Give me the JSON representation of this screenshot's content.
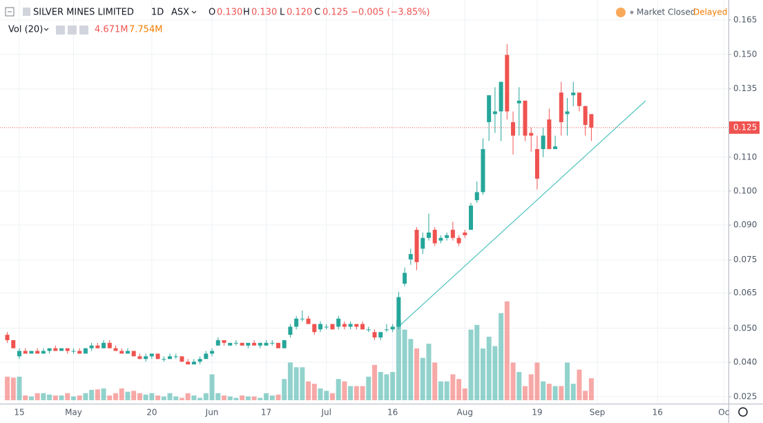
{
  "header": {
    "symbol": "SILVER MINES LIMITED",
    "interval": "1D",
    "exchange": "ASX",
    "open_label": "O",
    "open": "0.130",
    "high_label": "H",
    "high": "0.130",
    "low_label": "L",
    "low": "0.120",
    "close_label": "C",
    "close": "0.125",
    "change": "−0.005 (−3.85%)",
    "market_status": "Market Closed",
    "delay": "Delayed",
    "volume_label": "Vol (20)",
    "volume": "4.671M",
    "volume_ma": "7.754M"
  },
  "chart_data": {
    "type": "candlestick",
    "grid": true,
    "up_color": "#26a69a",
    "down_color": "#ef5350",
    "categories": [
      null,
      null,
      "15",
      null,
      null,
      null,
      null,
      null,
      null,
      null,
      null,
      "May",
      null,
      null,
      null,
      null,
      null,
      null,
      null,
      null,
      null,
      null,
      null,
      null,
      "20",
      null,
      null,
      null,
      null,
      null,
      null,
      null,
      null,
      null,
      "Jun",
      null,
      null,
      null,
      null,
      null,
      null,
      null,
      null,
      "17",
      null,
      null,
      null,
      null,
      null,
      null,
      null,
      null,
      null,
      "Jul",
      null,
      null,
      null,
      null,
      null,
      null,
      null,
      null,
      null,
      null,
      "16",
      null,
      null,
      null,
      null,
      null,
      null,
      null,
      null,
      null,
      null,
      null,
      "Aug",
      null,
      null,
      null,
      null,
      null,
      null,
      null,
      null,
      null,
      null,
      null,
      "19",
      null,
      null,
      null,
      null,
      null,
      null,
      null,
      null,
      null,
      "Sep",
      null,
      null,
      null,
      null,
      null,
      null,
      null,
      null,
      null,
      "16",
      null,
      null,
      null,
      null,
      null,
      null,
      null,
      null,
      null,
      null,
      "Oc"
    ],
    "open": [
      0.048,
      0.046,
      0.04,
      0.042,
      0.041,
      0.042,
      0.041,
      0.042,
      0.043,
      0.042,
      0.043,
      0.042,
      0.042,
      0.041,
      0.043,
      0.044,
      0.043,
      0.045,
      0.043,
      0.042,
      0.041,
      0.042,
      0.04,
      0.039,
      0.04,
      0.041,
      0.039,
      0.039,
      0.04,
      0.04,
      0.038,
      0.037,
      0.038,
      0.039,
      0.041,
      0.044,
      0.046,
      0.044,
      0.045,
      0.045,
      0.044,
      0.045,
      0.044,
      0.044,
      0.045,
      0.045,
      0.043,
      0.048,
      0.051,
      0.054,
      0.054,
      0.052,
      0.05,
      0.051,
      0.052,
      0.051,
      0.052,
      0.051,
      0.052,
      0.052,
      0.05,
      0.049,
      0.047,
      0.05,
      0.05,
      0.051,
      0.067,
      0.076,
      0.087,
      0.08,
      0.084,
      0.087,
      0.083,
      0.084,
      0.087,
      0.084,
      0.086,
      0.087,
      0.098,
      0.101,
      0.127,
      0.13,
      0.131,
      0.152,
      0.127,
      0.134,
      0.135,
      0.123,
      0.117,
      0.117,
      0.128,
      0.117,
      0.138,
      0.13,
      0.137,
      0.138,
      0.133,
      0.13,
      null,
      null,
      null,
      null,
      null,
      null,
      null,
      null,
      null,
      null,
      null,
      null,
      null,
      null,
      null,
      null,
      null,
      null,
      null,
      null,
      null,
      null
    ],
    "high": [
      0.049,
      0.046,
      0.043,
      0.043,
      0.042,
      0.043,
      0.043,
      0.043,
      0.044,
      0.043,
      0.043,
      0.043,
      0.043,
      0.043,
      0.045,
      0.045,
      0.046,
      0.046,
      0.044,
      0.043,
      0.043,
      0.042,
      0.041,
      0.041,
      0.041,
      0.041,
      0.04,
      0.041,
      0.041,
      0.04,
      0.039,
      0.039,
      0.04,
      0.042,
      0.043,
      0.047,
      0.046,
      0.045,
      0.046,
      0.045,
      0.045,
      0.046,
      0.045,
      0.046,
      0.046,
      0.045,
      0.046,
      0.052,
      0.055,
      0.057,
      0.055,
      0.052,
      0.053,
      0.052,
      0.052,
      0.055,
      0.053,
      0.053,
      0.052,
      0.053,
      0.051,
      0.05,
      0.049,
      0.052,
      0.052,
      0.064,
      0.073,
      0.08,
      0.088,
      0.086,
      0.093,
      0.088,
      0.085,
      0.086,
      0.09,
      0.085,
      0.087,
      0.097,
      0.105,
      0.121,
      0.137,
      0.14,
      0.142,
      0.156,
      0.131,
      0.14,
      0.135,
      0.125,
      0.122,
      0.125,
      0.132,
      0.122,
      0.142,
      0.136,
      0.142,
      0.138,
      0.133,
      0.13,
      null,
      null,
      null,
      null,
      null,
      null,
      null,
      null,
      null,
      null,
      null,
      null,
      null,
      null,
      null,
      null,
      null,
      null,
      null,
      null,
      null,
      null
    ],
    "low": [
      0.045,
      0.043,
      0.039,
      0.041,
      0.041,
      0.041,
      0.041,
      0.041,
      0.042,
      0.042,
      0.041,
      0.041,
      0.041,
      0.041,
      0.042,
      0.043,
      0.043,
      0.043,
      0.042,
      0.041,
      0.041,
      0.04,
      0.039,
      0.038,
      0.039,
      0.039,
      0.038,
      0.039,
      0.039,
      0.038,
      0.037,
      0.037,
      0.037,
      0.039,
      0.04,
      0.044,
      0.044,
      0.044,
      0.044,
      0.044,
      0.043,
      0.044,
      0.043,
      0.044,
      0.044,
      0.043,
      0.043,
      0.047,
      0.05,
      0.053,
      0.052,
      0.048,
      0.049,
      0.05,
      0.05,
      0.05,
      0.05,
      0.05,
      0.05,
      0.05,
      0.049,
      0.046,
      0.046,
      0.049,
      0.049,
      0.05,
      0.066,
      0.074,
      0.072,
      0.078,
      0.083,
      0.081,
      0.082,
      0.083,
      0.083,
      0.081,
      0.084,
      0.087,
      0.097,
      0.1,
      0.12,
      0.123,
      0.12,
      0.128,
      0.115,
      0.122,
      0.12,
      0.116,
      0.102,
      0.114,
      0.117,
      0.117,
      0.122,
      0.122,
      0.133,
      0.131,
      0.122,
      0.12,
      null,
      null,
      null,
      null,
      null,
      null,
      null,
      null,
      null,
      null,
      null,
      null,
      null,
      null,
      null,
      null,
      null,
      null,
      null,
      null,
      null,
      null
    ],
    "close": [
      0.046,
      0.043,
      0.042,
      0.041,
      0.042,
      0.041,
      0.042,
      0.043,
      0.042,
      0.043,
      0.042,
      0.042,
      0.041,
      0.043,
      0.044,
      0.043,
      0.045,
      0.043,
      0.042,
      0.041,
      0.042,
      0.04,
      0.039,
      0.04,
      0.041,
      0.039,
      0.039,
      0.04,
      0.04,
      0.038,
      0.037,
      0.038,
      0.039,
      0.041,
      0.042,
      0.046,
      0.045,
      0.045,
      0.045,
      0.044,
      0.045,
      0.044,
      0.045,
      0.045,
      0.045,
      0.043,
      0.046,
      0.051,
      0.054,
      0.054,
      0.052,
      0.049,
      0.052,
      0.051,
      0.05,
      0.054,
      0.051,
      0.052,
      0.051,
      0.05,
      0.05,
      0.047,
      0.049,
      0.05,
      0.051,
      0.062,
      0.071,
      0.078,
      0.075,
      0.084,
      0.086,
      0.082,
      0.084,
      0.085,
      0.084,
      0.082,
      0.085,
      0.096,
      0.101,
      0.117,
      0.137,
      0.131,
      0.142,
      0.131,
      0.122,
      0.135,
      0.122,
      0.122,
      0.106,
      0.122,
      0.117,
      0.118,
      0.127,
      0.131,
      0.138,
      0.133,
      0.126,
      0.125,
      null,
      null,
      null,
      null,
      null,
      null,
      null,
      null,
      null,
      null,
      null,
      null,
      null,
      null,
      null,
      null,
      null,
      null,
      null,
      null,
      null,
      null
    ],
    "volume": [
      5,
      4.8,
      5,
      1,
      0.8,
      1.5,
      1.5,
      1.2,
      1,
      1,
      1.5,
      0.8,
      1,
      1.5,
      2.2,
      2.3,
      2.5,
      1,
      1.5,
      2.5,
      1.8,
      2,
      1.5,
      1.2,
      1.5,
      1,
      0.8,
      1.5,
      0.8,
      0.5,
      1.5,
      1,
      0.5,
      1.5,
      5.5,
      1.5,
      1,
      0.8,
      0.5,
      1,
      0.8,
      0.8,
      0.5,
      1.5,
      1,
      1.2,
      4.5,
      8,
      7,
      7,
      4,
      3.5,
      2.5,
      2,
      1.5,
      4.5,
      4,
      3,
      3,
      3,
      5,
      7.5,
      6,
      5.5,
      6,
      17,
      15,
      13,
      11,
      9,
      12,
      8,
      4,
      4,
      5.5,
      4.5,
      2.5,
      15,
      16,
      11,
      13.5,
      11.5,
      18.5,
      21,
      8,
      6,
      3,
      5.5,
      8,
      4,
      3.5,
      3,
      3,
      8,
      3.5,
      6.5,
      2,
      4.671,
      null,
      null,
      null,
      null,
      null,
      null,
      null,
      null,
      null,
      null,
      null,
      null,
      null,
      null,
      null,
      null,
      null,
      null,
      null,
      null,
      null,
      null
    ],
    "ylim": [
      0.0224,
      0.1724
    ],
    "yticks": [
      0.165,
      {
        "value": 0.1522,
        "label": "0.150"
      },
      {
        "value": 0.1394,
        "label": "0.135"
      },
      {
        "value": 0.114,
        "label": "0.110"
      },
      {
        "value": 0.1014,
        "label": "0.100"
      },
      {
        "value": 0.0888,
        "label": "0.090"
      },
      {
        "value": 0.0758,
        "label": "0.075"
      },
      {
        "value": 0.0635,
        "label": "0.065"
      },
      {
        "value": 0.0504,
        "label": "0.050"
      },
      {
        "value": 0.0378,
        "label": "0.040"
      },
      0.025
    ],
    "volume_ylim": [
      0,
      85
    ]
  }
}
